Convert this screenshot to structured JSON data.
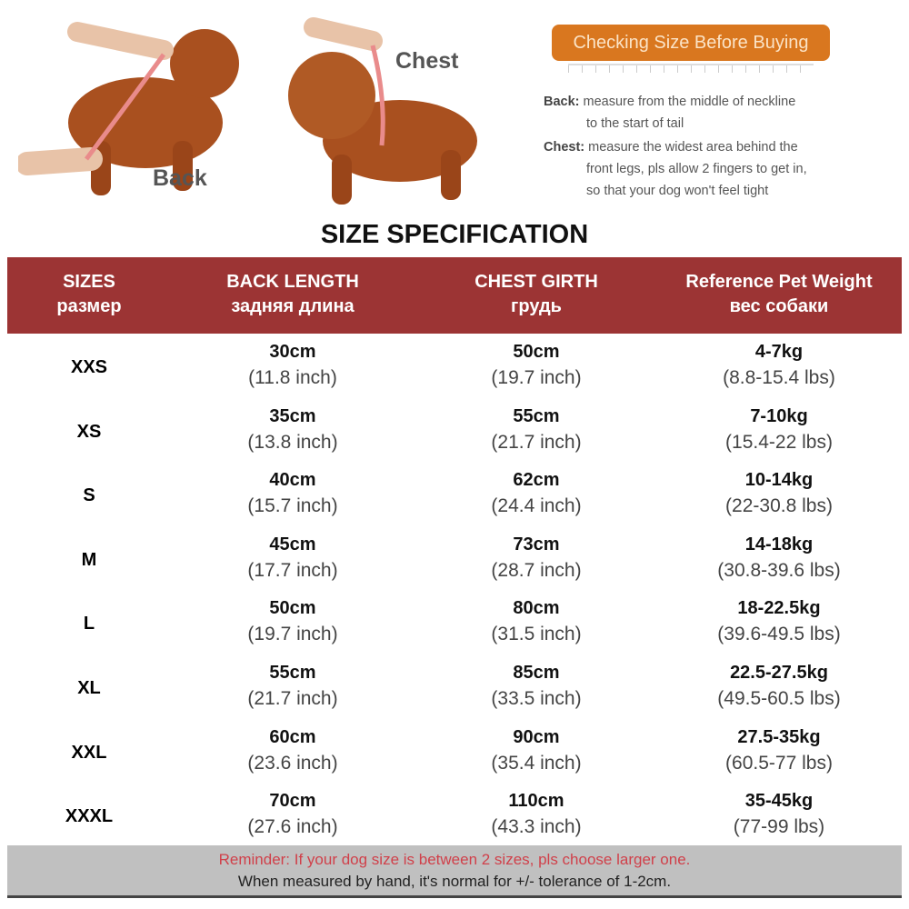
{
  "images": {
    "back_label": "Back",
    "chest_label": "Chest"
  },
  "info": {
    "badge": "Checking Size Before Buying",
    "back_term": "Back:",
    "back_line1": "measure from the middle of neckline",
    "back_line2": "to the start of tail",
    "chest_term": "Chest:",
    "chest_line1": "measure the widest area behind the",
    "chest_line2": "front legs, pls allow 2 fingers to get in,",
    "chest_line3": "so that your dog won't feel tight"
  },
  "title": "SIZE SPECIFICATION",
  "colors": {
    "header": "#9c3434",
    "badge": "#d9771f",
    "reminder": "#d0404a"
  },
  "table": {
    "headers": [
      {
        "en": "SIZES",
        "ru": "размер"
      },
      {
        "en": "BACK LENGTH",
        "ru": "задняя длина"
      },
      {
        "en": "CHEST GIRTH",
        "ru": "грудь"
      },
      {
        "en": "Reference Pet Weight",
        "ru": "вес собаки"
      }
    ],
    "rows": [
      {
        "size": "XXS",
        "back": "30cm",
        "back_in": "(11.8 inch)",
        "chest": "50cm",
        "chest_in": "(19.7 inch)",
        "weight": "4-7kg",
        "weight_lbs": "(8.8-15.4 lbs)"
      },
      {
        "size": "XS",
        "back": "35cm",
        "back_in": "(13.8 inch)",
        "chest": "55cm",
        "chest_in": "(21.7 inch)",
        "weight": "7-10kg",
        "weight_lbs": "(15.4-22 lbs)"
      },
      {
        "size": "S",
        "back": "40cm",
        "back_in": "(15.7 inch)",
        "chest": "62cm",
        "chest_in": "(24.4 inch)",
        "weight": "10-14kg",
        "weight_lbs": "(22-30.8 lbs)"
      },
      {
        "size": "M",
        "back": "45cm",
        "back_in": "(17.7 inch)",
        "chest": "73cm",
        "chest_in": "(28.7 inch)",
        "weight": "14-18kg",
        "weight_lbs": "(30.8-39.6 lbs)"
      },
      {
        "size": "L",
        "back": "50cm",
        "back_in": "(19.7 inch)",
        "chest": "80cm",
        "chest_in": "(31.5 inch)",
        "weight": "18-22.5kg",
        "weight_lbs": "(39.6-49.5 lbs)"
      },
      {
        "size": "XL",
        "back": "55cm",
        "back_in": "(21.7 inch)",
        "chest": "85cm",
        "chest_in": "(33.5 inch)",
        "weight": "22.5-27.5kg",
        "weight_lbs": "(49.5-60.5 lbs)"
      },
      {
        "size": "XXL",
        "back": "60cm",
        "back_in": "(23.6 inch)",
        "chest": "90cm",
        "chest_in": "(35.4 inch)",
        "weight": "27.5-35kg",
        "weight_lbs": "(60.5-77 lbs)"
      },
      {
        "size": "XXXL",
        "back": "70cm",
        "back_in": "(27.6 inch)",
        "chest": "110cm",
        "chest_in": "(43.3 inch)",
        "weight": "35-45kg",
        "weight_lbs": "(77-99 lbs)"
      }
    ]
  },
  "footer": {
    "reminder": "Reminder: If your dog size is between 2 sizes, pls choose larger one.",
    "tolerance": "When measured by hand, it's normal for +/- tolerance of 1-2cm."
  }
}
